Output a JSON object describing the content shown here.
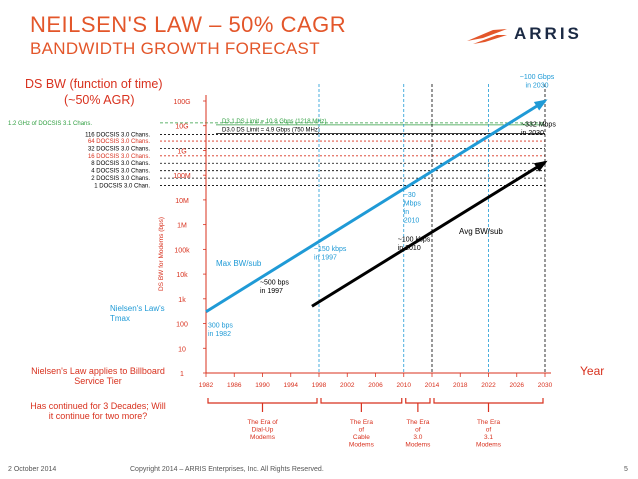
{
  "slide": {
    "title": "NEILSEN'S LAW – 50% CAGR",
    "subtitle": "BANDWIDTH GROWTH FORECAST",
    "logo_text": "ARRIS",
    "note_applies": "Nielsen's Law applies to Billboard Service Tier",
    "note_question": "Has continued for 3 Decades; Will it continue for two more?",
    "footer_date": "2 October 2014",
    "footer_copyright": "Copyright 2014 – ARRIS Enterprises, Inc. All Rights Reserved.",
    "page_number": "5"
  },
  "chart_data": {
    "type": "line",
    "title": "DS BW (function of time) (~50% AGR)",
    "xlabel": "Year",
    "ylabel": "DS BW for Modems (bps)",
    "x_scale": "linear",
    "y_scale": "log",
    "xlim": [
      1982,
      2030
    ],
    "ylim": [
      1,
      100000000000
    ],
    "x_ticks": [
      1982,
      1986,
      1990,
      1994,
      1998,
      2002,
      2006,
      2010,
      2014,
      2018,
      2022,
      2026,
      2030
    ],
    "y_ticks": [
      {
        "value": 1,
        "label": "1"
      },
      {
        "value": 10,
        "label": "10"
      },
      {
        "value": 100,
        "label": "100"
      },
      {
        "value": 1000,
        "label": "1k"
      },
      {
        "value": 10000,
        "label": "10k"
      },
      {
        "value": 100000,
        "label": "100k"
      },
      {
        "value": 1000000,
        "label": "1M"
      },
      {
        "value": 10000000,
        "label": "10M"
      },
      {
        "value": 100000000,
        "label": "100M"
      },
      {
        "value": 1000000000,
        "label": "1G"
      },
      {
        "value": 10000000000,
        "label": "10G"
      },
      {
        "value": 100000000000,
        "label": "100G"
      }
    ],
    "series": [
      {
        "name": "Max BW/sub",
        "color": "#1f9ad6",
        "points": [
          [
            1982,
            300
          ],
          [
            2030,
            100000000000
          ]
        ]
      },
      {
        "name": "Avg BW/sub",
        "color": "#000000",
        "points": [
          [
            1997,
            500
          ],
          [
            2030,
            332000000
          ]
        ]
      }
    ],
    "point_labels": [
      {
        "text": [
          "300 bps",
          "in 1982"
        ],
        "color": "#1f9ad6",
        "x": 1982,
        "y": 300
      },
      {
        "text": [
          "~150 kbps",
          "in 1997"
        ],
        "color": "#1f9ad6",
        "x": 1997,
        "y": 150000
      },
      {
        "text": [
          "~30",
          "Mbps",
          "in",
          "2010"
        ],
        "color": "#1f9ad6",
        "x": 2010,
        "y": 30000000
      },
      {
        "text": [
          "~100 Gbps",
          "in 2030"
        ],
        "color": "#1f9ad6",
        "x": 2030,
        "y": 100000000000
      },
      {
        "text": [
          "~500 bps",
          "in 1997"
        ],
        "color": "#000000",
        "x": 1997,
        "y": 500
      },
      {
        "text": [
          "~100 kbps",
          "in 2010"
        ],
        "color": "#000000",
        "x": 2010,
        "y": 100000
      },
      {
        "text": [
          "~332 Mbps",
          "in 2030"
        ],
        "color": "#000000",
        "x": 2030,
        "y": 332000000
      }
    ],
    "series_labels": [
      {
        "text": "Max BW/sub",
        "color": "#1f9ad6"
      },
      {
        "text": "Avg BW/sub",
        "color": "#000000"
      },
      {
        "text": "Nielsen's Law's Tmax",
        "color": "#1f9ad6"
      }
    ],
    "reference_lines": [
      {
        "label": "1.2 GHz of DOCSIS 3.1 Chans.",
        "value": 13000000000,
        "color": "#2e9e3f",
        "dash": "3,2"
      },
      {
        "label": "D3.1 DS Limit = 10.8 Gbps (1218 MHz)",
        "value": 10800000000,
        "color": "#2e9e3f",
        "dash": "none"
      },
      {
        "label": "D3.0 DS Limit = 4.9 Gbps (750 MHz)",
        "value": 4900000000,
        "color": "#000000",
        "dash": "none"
      },
      {
        "label": "116 DOCSIS 3.0 Chans.",
        "value": 4400000000,
        "color": "#000000",
        "dash": "2,2"
      },
      {
        "label": "64 DOCSIS 3.0 Chans.",
        "value": 2400000000,
        "color": "#d8311e",
        "dash": "2,2"
      },
      {
        "label": "32 DOCSIS 3.0 Chans.",
        "value": 1200000000,
        "color": "#000000",
        "dash": "2,2"
      },
      {
        "label": "16 DOCSIS 3.0 Chans.",
        "value": 608000000,
        "color": "#d8311e",
        "dash": "2,2"
      },
      {
        "label": "8 DOCSIS 3.0 Chans.",
        "value": 304000000,
        "color": "#000000",
        "dash": "2,2"
      },
      {
        "label": "4 DOCSIS 3.0 Chans.",
        "value": 152000000,
        "color": "#000000",
        "dash": "2,2"
      },
      {
        "label": "2 DOCSIS 3.0 Chans.",
        "value": 76000000,
        "color": "#000000",
        "dash": "2,2"
      },
      {
        "label": "1 DOCSIS 3.0 Chan.",
        "value": 38000000,
        "color": "#000000",
        "dash": "2,2"
      }
    ],
    "vertical_lines": [
      {
        "x": 1998,
        "color": "#1f9ad6"
      },
      {
        "x": 2010,
        "color": "#1f9ad6"
      },
      {
        "x": 2014,
        "color": "#000000"
      },
      {
        "x": 2022,
        "color": "#1f9ad6"
      },
      {
        "x": 2030,
        "color": "#000000"
      }
    ],
    "eras": [
      {
        "label": [
          "The Era of",
          "Dial-Up",
          "Modems"
        ],
        "start": 1982,
        "end": 1998
      },
      {
        "label": [
          "The Era",
          "of",
          "Cable",
          "Modems"
        ],
        "start": 1998,
        "end": 2010
      },
      {
        "label": [
          "The Era",
          "of",
          "3.0",
          "Modems"
        ],
        "start": 2010,
        "end": 2014
      },
      {
        "label": [
          "The Era",
          "of",
          "3.1",
          "Modems"
        ],
        "start": 2014,
        "end": 2030
      }
    ],
    "colors": {
      "accent": "#e3562a",
      "axis": "#d8311e",
      "max_line": "#1f9ad6",
      "avg_line": "#000000"
    }
  }
}
